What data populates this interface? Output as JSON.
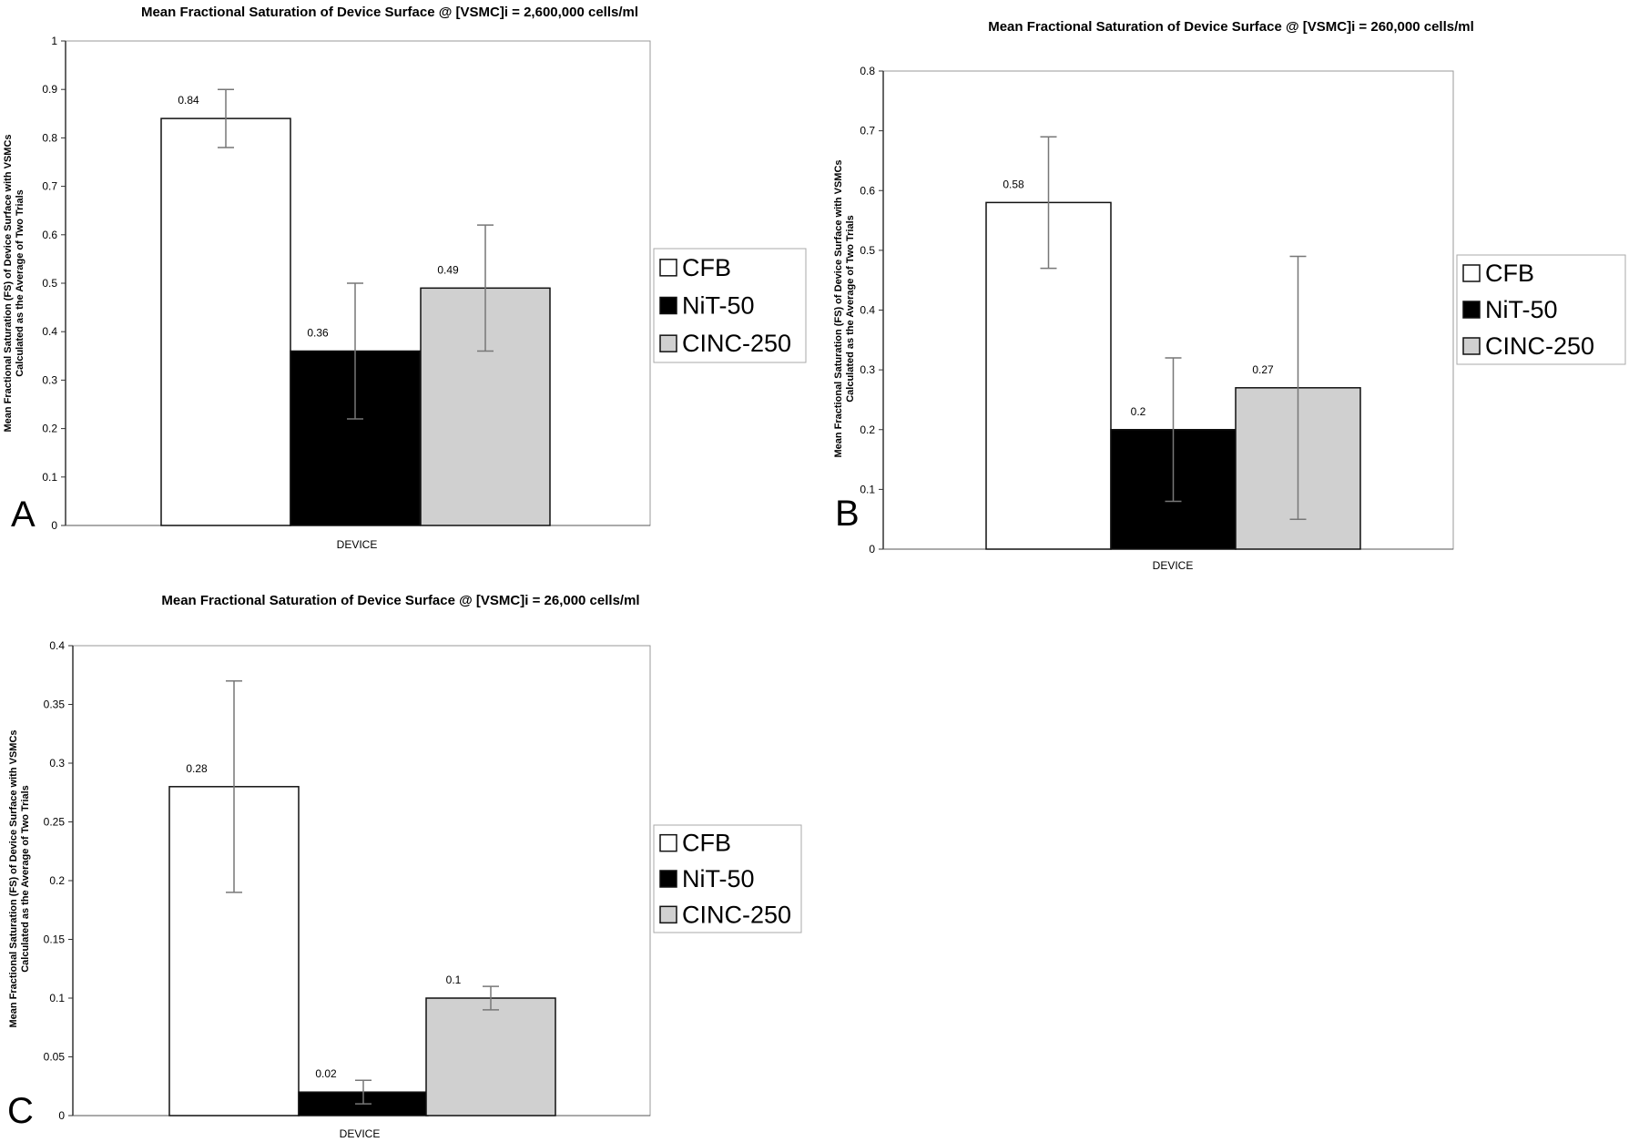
{
  "legend_labels": [
    "CFB",
    "NiT-50",
    "CINC-250"
  ],
  "colors": {
    "CFB": "#ffffff",
    "NiT-50": "#000000",
    "CINC-250": "#d0d0d0",
    "error_bar": "#777777",
    "frame": "#999999"
  },
  "chart_data": [
    {
      "panel": "A",
      "type": "bar",
      "title": "Mean Fractional Saturation of Device Surface @ [VSMC]i = 2,600,000 cells/ml",
      "ylabel_line1": "Mean Fractional Saturation (FS) of Device Surface with VSMCs",
      "ylabel_line2": "Calculated as the Average of Two Trials",
      "xlabel": "DEVICE",
      "ylim": [
        0,
        1
      ],
      "yticks": [
        "0",
        "0.1",
        "0.2",
        "0.3",
        "0.4",
        "0.5",
        "0.6",
        "0.7",
        "0.8",
        "0.9",
        "1"
      ],
      "series": [
        {
          "name": "CFB",
          "value": 0.84,
          "label": "0.84",
          "err_low": 0.78,
          "err_high": 0.9
        },
        {
          "name": "NiT-50",
          "value": 0.36,
          "label": "0.36",
          "err_low": 0.22,
          "err_high": 0.5
        },
        {
          "name": "CINC-250",
          "value": 0.49,
          "label": "0.49",
          "err_low": 0.36,
          "err_high": 0.62
        }
      ],
      "grid": false,
      "legend_position": "right"
    },
    {
      "panel": "B",
      "type": "bar",
      "title": "Mean Fractional Saturation of Device Surface @ [VSMC]i = 260,000 cells/ml",
      "ylabel_line1": "Mean Fractional Saturation (FS) of Device Surface with VSMCs",
      "ylabel_line2": "Calculated as the Average of Two Trials",
      "xlabel": "DEVICE",
      "ylim": [
        0,
        0.8
      ],
      "yticks": [
        "0",
        "0.1",
        "0.2",
        "0.3",
        "0.4",
        "0.5",
        "0.6",
        "0.7",
        "0.8"
      ],
      "series": [
        {
          "name": "CFB",
          "value": 0.58,
          "label": "0.58",
          "err_low": 0.47,
          "err_high": 0.69
        },
        {
          "name": "NiT-50",
          "value": 0.2,
          "label": "0.2",
          "err_low": 0.08,
          "err_high": 0.32
        },
        {
          "name": "CINC-250",
          "value": 0.27,
          "label": "0.27",
          "err_low": 0.05,
          "err_high": 0.49
        }
      ],
      "grid": false,
      "legend_position": "right"
    },
    {
      "panel": "C",
      "type": "bar",
      "title": "Mean Fractional Saturation of Device Surface @ [VSMC]i = 26,000 cells/ml",
      "ylabel_line1": "Mean Fractional Saturation (FS) of Device Surface with VSMCs",
      "ylabel_line2": "Calculated as the Average of Two Trials",
      "xlabel": "DEVICE",
      "ylim": [
        0,
        0.4
      ],
      "yticks": [
        "0",
        "0.05",
        "0.1",
        "0.15",
        "0.2",
        "0.25",
        "0.3",
        "0.35",
        "0.4"
      ],
      "series": [
        {
          "name": "CFB",
          "value": 0.28,
          "label": "0.28",
          "err_low": 0.19,
          "err_high": 0.37
        },
        {
          "name": "NiT-50",
          "value": 0.02,
          "label": "0.02",
          "err_low": 0.01,
          "err_high": 0.03
        },
        {
          "name": "CINC-250",
          "value": 0.1,
          "label": "0.1",
          "err_low": 0.09,
          "err_high": 0.11
        }
      ],
      "grid": false,
      "legend_position": "right"
    }
  ]
}
